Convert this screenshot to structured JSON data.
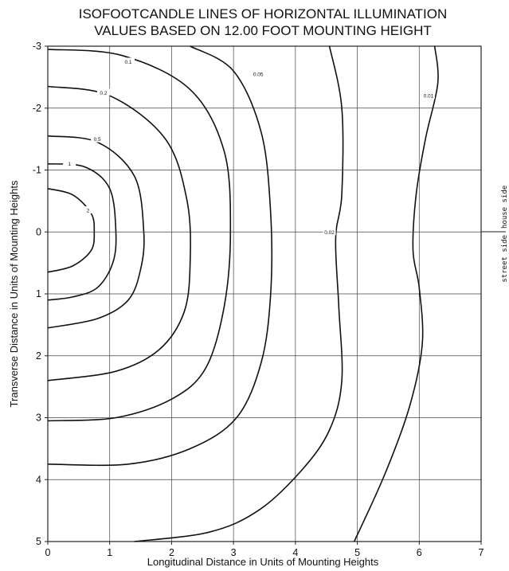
{
  "chart_data": {
    "type": "contour",
    "title_lines": [
      "ISOFOOTCANDLE LINES OF HORIZONTAL ILLUMINATION",
      "VALUES BASED ON 12.00 FOOT MOUNTING HEIGHT"
    ],
    "xlabel": "Longitudinal Distance in Units of Mounting Heights",
    "ylabel": "Transverse Distance in Units of Mounting Heights",
    "xlim": [
      0,
      7
    ],
    "ylim": [
      -3,
      5
    ],
    "y_axis_inverted": true,
    "x_ticks": [
      "0",
      "1",
      "2",
      "3",
      "4",
      "5",
      "6",
      "7"
    ],
    "y_ticks": [
      "-3",
      "-2",
      "-1",
      "0",
      "1",
      "2",
      "3",
      "4",
      "5"
    ],
    "grid": true,
    "side_labels": {
      "upper": "house side",
      "lower": "street side"
    },
    "contours": [
      {
        "level": "2",
        "points": [
          [
            0,
            -0.7
          ],
          [
            0.4,
            -0.6
          ],
          [
            0.7,
            -0.3
          ],
          [
            0.75,
            0
          ],
          [
            0.7,
            0.3
          ],
          [
            0.4,
            0.55
          ],
          [
            0,
            0.65
          ]
        ],
        "label_at": [
          0.65,
          -0.35
        ]
      },
      {
        "level": "1",
        "points": [
          [
            0,
            -1.1
          ],
          [
            0.6,
            -1.05
          ],
          [
            1.0,
            -0.7
          ],
          [
            1.1,
            0
          ],
          [
            1.05,
            0.5
          ],
          [
            0.8,
            0.9
          ],
          [
            0.4,
            1.05
          ],
          [
            0,
            1.1
          ]
        ],
        "label_at": [
          0.35,
          -1.1
        ]
      },
      {
        "level": "0.5",
        "points": [
          [
            0,
            -1.55
          ],
          [
            0.8,
            -1.45
          ],
          [
            1.4,
            -0.9
          ],
          [
            1.55,
            0
          ],
          [
            1.5,
            0.6
          ],
          [
            1.3,
            1.1
          ],
          [
            0.8,
            1.4
          ],
          [
            0,
            1.55
          ]
        ],
        "label_at": [
          0.8,
          -1.5
        ]
      },
      {
        "level": "0.2",
        "points": [
          [
            0,
            -2.35
          ],
          [
            1.0,
            -2.2
          ],
          [
            1.9,
            -1.5
          ],
          [
            2.25,
            -0.5
          ],
          [
            2.3,
            0.5
          ],
          [
            2.2,
            1.3
          ],
          [
            1.8,
            1.9
          ],
          [
            1.1,
            2.25
          ],
          [
            0,
            2.4
          ]
        ],
        "label_at": [
          0.9,
          -2.25
        ]
      },
      {
        "level": "0.1",
        "points": [
          [
            0,
            -2.95
          ],
          [
            1.2,
            -2.85
          ],
          [
            2.3,
            -2.3
          ],
          [
            2.85,
            -1.3
          ],
          [
            2.95,
            0
          ],
          [
            2.85,
            1.2
          ],
          [
            2.55,
            2.2
          ],
          [
            2.0,
            2.7
          ],
          [
            1.1,
            3.0
          ],
          [
            0,
            3.05
          ]
        ],
        "label_at": [
          1.3,
          -2.75
        ]
      },
      {
        "level": "0.05",
        "points": [
          [
            2.3,
            -3.0
          ],
          [
            3.0,
            -2.6
          ],
          [
            3.45,
            -1.6
          ],
          [
            3.6,
            -0.3
          ],
          [
            3.6,
            1.0
          ],
          [
            3.45,
            2.1
          ],
          [
            3.05,
            3.0
          ],
          [
            2.3,
            3.5
          ],
          [
            1.3,
            3.75
          ],
          [
            0,
            3.75
          ]
        ],
        "label_at": [
          3.4,
          -2.55
        ]
      },
      {
        "level": "0.02",
        "points": [
          [
            4.55,
            -3.0
          ],
          [
            4.75,
            -2.0
          ],
          [
            4.75,
            -0.6
          ],
          [
            4.65,
            0.1
          ],
          [
            4.7,
            1.2
          ],
          [
            4.75,
            2.4
          ],
          [
            4.55,
            3.2
          ],
          [
            4.1,
            3.85
          ],
          [
            3.4,
            4.5
          ],
          [
            2.6,
            4.85
          ],
          [
            1.4,
            5.0
          ]
        ],
        "label_at": [
          4.55,
          0.0
        ]
      },
      {
        "level": "0.01",
        "points": [
          [
            6.25,
            -3.0
          ],
          [
            6.3,
            -2.4
          ],
          [
            6.1,
            -1.5
          ],
          [
            5.95,
            -0.6
          ],
          [
            5.9,
            0.3
          ],
          [
            6.0,
            0.9
          ],
          [
            6.05,
            1.8
          ],
          [
            5.85,
            2.8
          ],
          [
            5.45,
            3.9
          ],
          [
            4.95,
            5.0
          ]
        ],
        "label_at": [
          6.15,
          -2.2
        ]
      }
    ]
  }
}
